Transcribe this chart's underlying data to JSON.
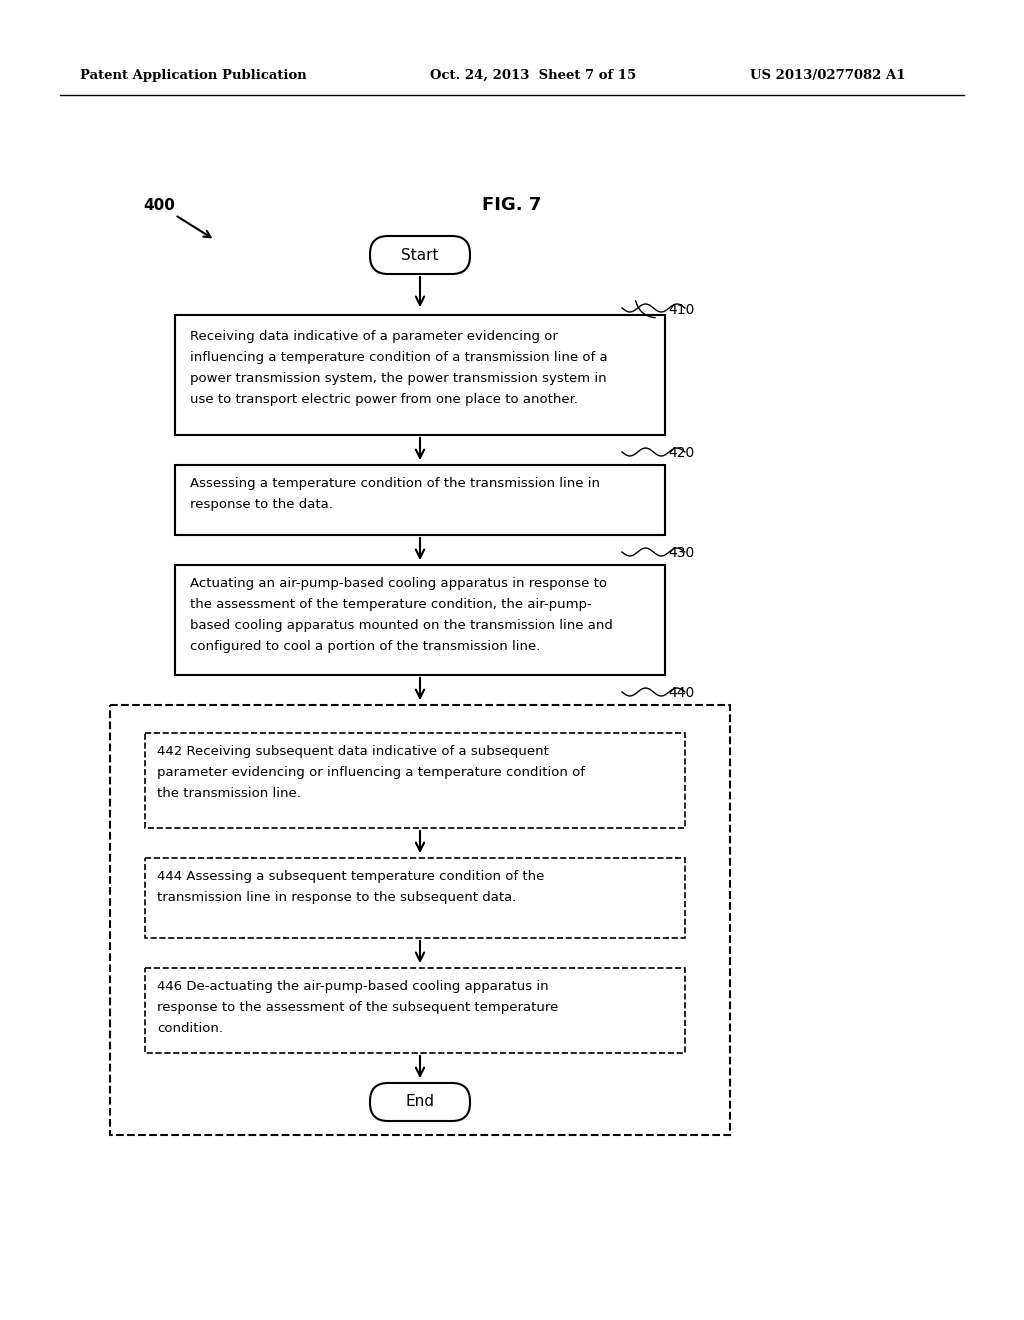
{
  "header_left": "Patent Application Publication",
  "header_mid": "Oct. 24, 2013  Sheet 7 of 15",
  "header_right": "US 2013/0277082 A1",
  "fig_label": "FIG. 7",
  "diagram_label": "400",
  "start_label": "Start",
  "end_label": "End",
  "box410_label": "410",
  "box420_label": "420",
  "box430_label": "430",
  "box440_label": "440",
  "box442_label": "442",
  "box444_label": "444",
  "box446_label": "446",
  "box410_text": "Receiving data indicative of a parameter evidencing or\ninfluencing a temperature condition of a transmission line of a\npower transmission system, the power transmission system in\nuse to transport electric power from one place to another.",
  "box420_text": "Assessing a temperature condition of the transmission line in\nresponse to the data.",
  "box430_text": "Actuating an air-pump-based cooling apparatus in response to\nthe assessment of the temperature condition, the air-pump-\nbased cooling apparatus mounted on the transmission line and\nconfigured to cool a portion of the transmission line.",
  "box442_text": "442 Receiving subsequent data indicative of a subsequent\nparameter evidencing or influencing a temperature condition of\nthe transmission line.",
  "box444_text": "444 Assessing a subsequent temperature condition of the\ntransmission line in response to the subsequent data.",
  "box446_text": "446 De-actuating the air-pump-based cooling apparatus in\nresponse to the assessment of the subsequent temperature\ncondition.",
  "bg_color": "#ffffff",
  "text_color": "#000000",
  "line_color": "#000000"
}
